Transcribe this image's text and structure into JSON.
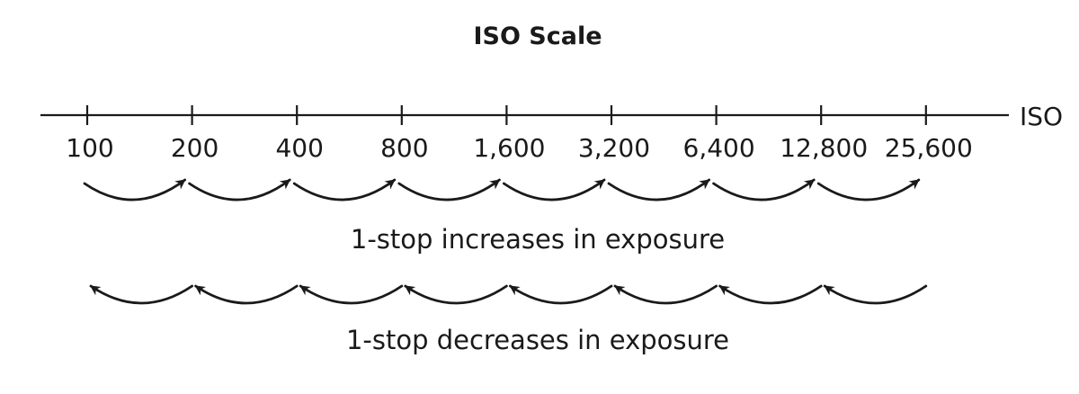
{
  "title": "ISO Scale",
  "axis": {
    "label": "ISO",
    "values": [
      "100",
      "200",
      "400",
      "800",
      "1,600",
      "3,200",
      "6,400",
      "12,800",
      "25,600"
    ]
  },
  "increase_row": {
    "caption": "1-stop increases in exposure",
    "direction": "left-to-right"
  },
  "decrease_row": {
    "caption": "1-stop decreases in exposure",
    "direction": "right-to-left"
  },
  "colors": {
    "ink": "#1a1a1a",
    "background": "#ffffff"
  }
}
